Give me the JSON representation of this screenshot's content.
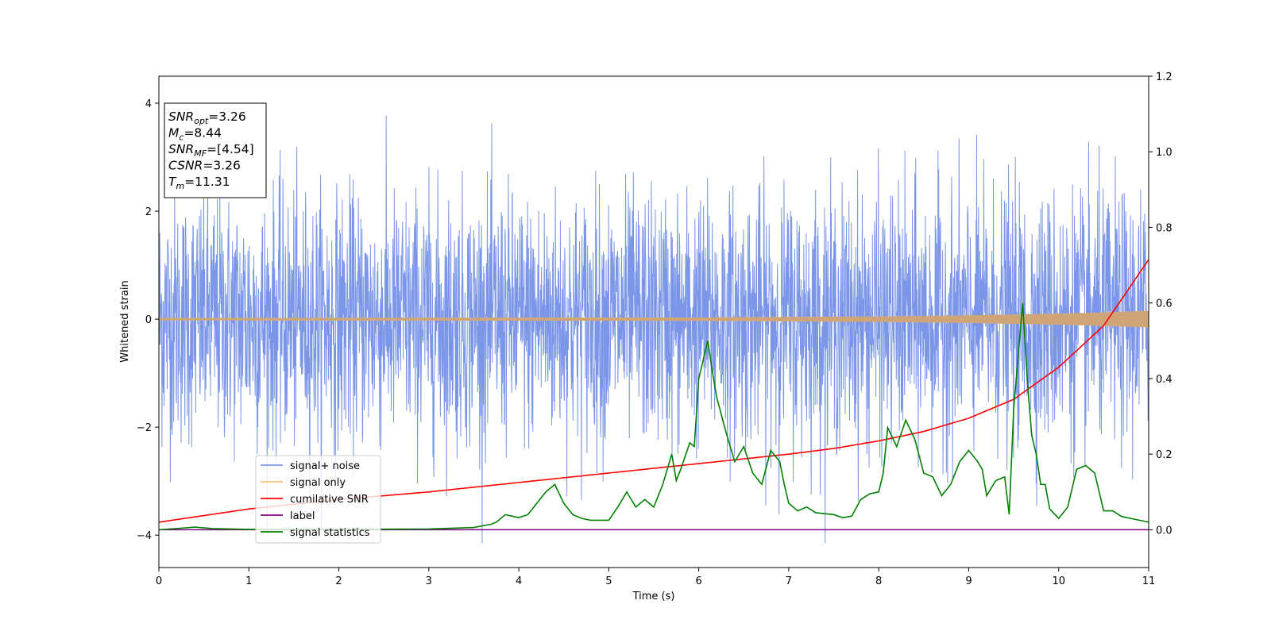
{
  "chart_data": {
    "type": "line",
    "xlabel": "Time (s)",
    "ylabel": "Whitened strain",
    "xlim": [
      0,
      11
    ],
    "ylim": [
      -4.6,
      4.5
    ],
    "y2lim": [
      -0.1,
      1.2
    ],
    "x_ticks": [
      0,
      1,
      2,
      3,
      4,
      5,
      6,
      7,
      8,
      9,
      10,
      11
    ],
    "y_ticks": [
      -4,
      -2,
      0,
      2,
      4
    ],
    "y2_ticks": [
      "0.0",
      "0.2",
      "0.4",
      "0.6",
      "0.8",
      "1.0",
      "1.2"
    ],
    "legend_position": "lower-left",
    "annotation": {
      "lines": [
        {
          "main": "SNR",
          "sub": "opt",
          "value": "=3.26"
        },
        {
          "main": "M",
          "sub": "c",
          "value": "=8.44"
        },
        {
          "main": "SNR",
          "sub": "MF",
          "value": "=[4.54]"
        },
        {
          "main": "CSNR",
          "sub": "",
          "value": "=3.26"
        },
        {
          "main": "T",
          "sub": "m",
          "value": "=11.31"
        }
      ]
    },
    "series": [
      {
        "name": "signal+ noise",
        "color": "#7b96e8",
        "axis": "left",
        "description_range": [
          -4.15,
          4.1
        ]
      },
      {
        "name": "signal only",
        "color": "#f5c26b",
        "axis": "left",
        "envelope": {
          "x": [
            0,
            6,
            8,
            9,
            10,
            11
          ],
          "amp": [
            0.02,
            0.03,
            0.05,
            0.07,
            0.1,
            0.15
          ]
        }
      },
      {
        "name": "cumilative SNR",
        "color": "#ff0000",
        "axis": "right",
        "x": [
          0,
          1,
          2,
          3,
          4,
          5,
          6,
          7,
          7.5,
          8,
          8.5,
          9,
          9.5,
          10,
          10.5,
          11
        ],
        "y": [
          0.02,
          0.055,
          0.08,
          0.1,
          0.125,
          0.15,
          0.175,
          0.2,
          0.215,
          0.235,
          0.26,
          0.295,
          0.345,
          0.43,
          0.54,
          0.715
        ]
      },
      {
        "name": "label",
        "color": "#800080",
        "axis": "right",
        "x": [
          0,
          11
        ],
        "y": [
          0.0,
          0.0
        ]
      },
      {
        "name": "signal statistics",
        "color": "#008000",
        "axis": "right",
        "x": [
          0,
          0.3,
          0.4,
          0.6,
          1,
          2,
          3,
          3.5,
          3.7,
          3.75,
          3.85,
          4.0,
          4.1,
          4.2,
          4.3,
          4.4,
          4.5,
          4.6,
          4.7,
          4.8,
          4.9,
          5.0,
          5.1,
          5.2,
          5.3,
          5.4,
          5.5,
          5.6,
          5.7,
          5.75,
          5.8,
          5.9,
          5.95,
          6.0,
          6.05,
          6.1,
          6.15,
          6.2,
          6.3,
          6.4,
          6.5,
          6.6,
          6.7,
          6.8,
          6.9,
          6.95,
          7.0,
          7.1,
          7.2,
          7.3,
          7.5,
          7.6,
          7.7,
          7.8,
          7.9,
          8.0,
          8.05,
          8.1,
          8.2,
          8.3,
          8.4,
          8.5,
          8.6,
          8.7,
          8.8,
          8.9,
          9.0,
          9.1,
          9.15,
          9.2,
          9.3,
          9.4,
          9.45,
          9.5,
          9.6,
          9.65,
          9.7,
          9.75,
          9.8,
          9.85,
          9.9,
          10.0,
          10.1,
          10.2,
          10.3,
          10.4,
          10.5,
          10.6,
          10.7,
          10.8,
          10.9,
          11.0
        ],
        "y": [
          0.0,
          0.005,
          0.007,
          0.003,
          0.001,
          0.001,
          0.002,
          0.006,
          0.015,
          0.02,
          0.04,
          0.032,
          0.04,
          0.07,
          0.1,
          0.12,
          0.07,
          0.04,
          0.03,
          0.025,
          0.025,
          0.025,
          0.06,
          0.1,
          0.06,
          0.08,
          0.06,
          0.12,
          0.2,
          0.13,
          0.16,
          0.23,
          0.22,
          0.4,
          0.45,
          0.5,
          0.42,
          0.35,
          0.26,
          0.18,
          0.22,
          0.15,
          0.12,
          0.21,
          0.18,
          0.12,
          0.07,
          0.05,
          0.06,
          0.045,
          0.04,
          0.032,
          0.036,
          0.08,
          0.095,
          0.1,
          0.15,
          0.27,
          0.22,
          0.29,
          0.24,
          0.15,
          0.14,
          0.09,
          0.12,
          0.18,
          0.21,
          0.18,
          0.16,
          0.09,
          0.13,
          0.14,
          0.04,
          0.32,
          0.6,
          0.4,
          0.25,
          0.2,
          0.12,
          0.12,
          0.055,
          0.03,
          0.06,
          0.16,
          0.17,
          0.15,
          0.05,
          0.05,
          0.035,
          0.03,
          0.025,
          0.02
        ]
      }
    ]
  }
}
